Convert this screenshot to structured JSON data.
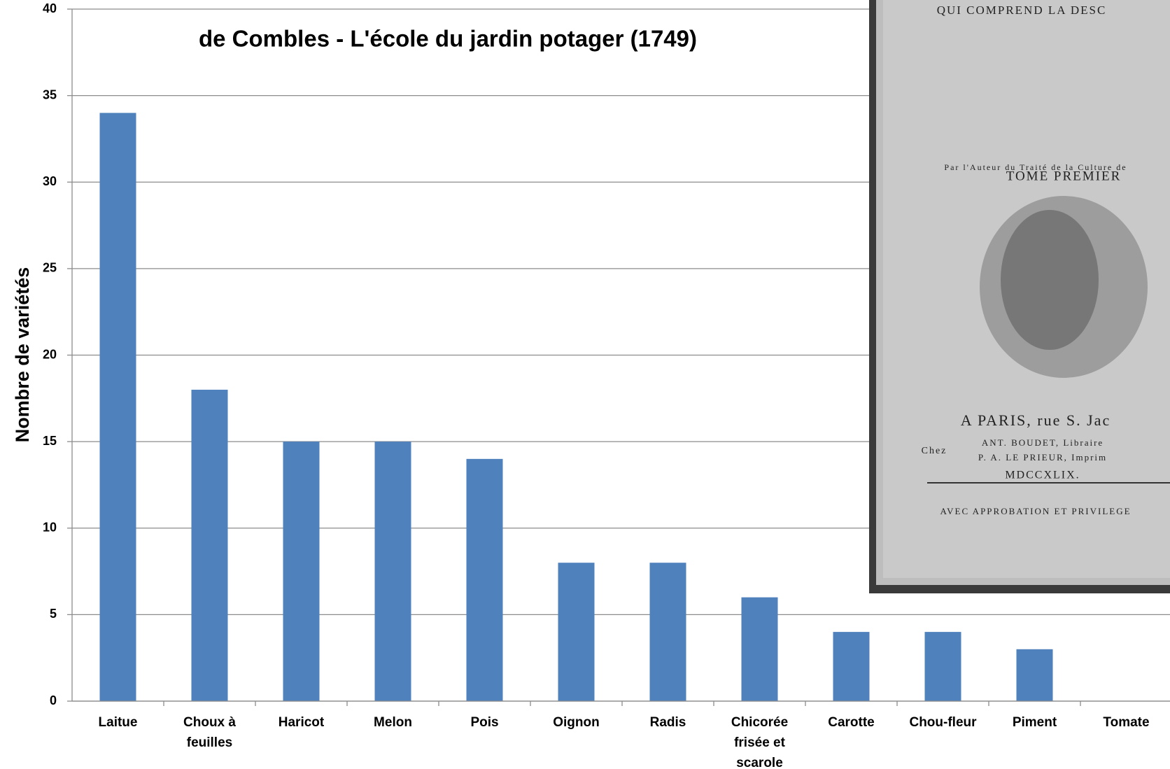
{
  "chart_data": {
    "type": "bar",
    "title": "de Combles - L'école du jardin potager (1749)",
    "y_label": "Nombre de variétés",
    "categories": [
      "Laitue",
      "Choux à feuilles",
      "Haricot",
      "Melon",
      "Pois",
      "Oignon",
      "Radis",
      "Chicorée frisée et scarole",
      "Carotte",
      "Chou-fleur",
      "Piment",
      "Tomate"
    ],
    "values": [
      34,
      18,
      15,
      15,
      14,
      8,
      8,
      6,
      4,
      4,
      3,
      0
    ],
    "color": "#4f81bd",
    "ylim": [
      0,
      40
    ],
    "yticks": [
      0,
      5,
      10,
      15,
      20,
      25,
      30,
      35,
      40
    ],
    "grid": true
  },
  "inset_image": {
    "lines": [
      "QUI COMPREND LA DESC",
      "Par l'Auteur du Traité de la Culture de",
      "TOME PREMIER",
      "A PARIS, rue S. Jac",
      "Chez",
      "ANT. BOUDET, Libraire",
      "P. A. LE PRIEUR, Imprim",
      "MDCCXLIX.",
      "AVEC APPROBATION ET PRIVILEGE"
    ]
  }
}
